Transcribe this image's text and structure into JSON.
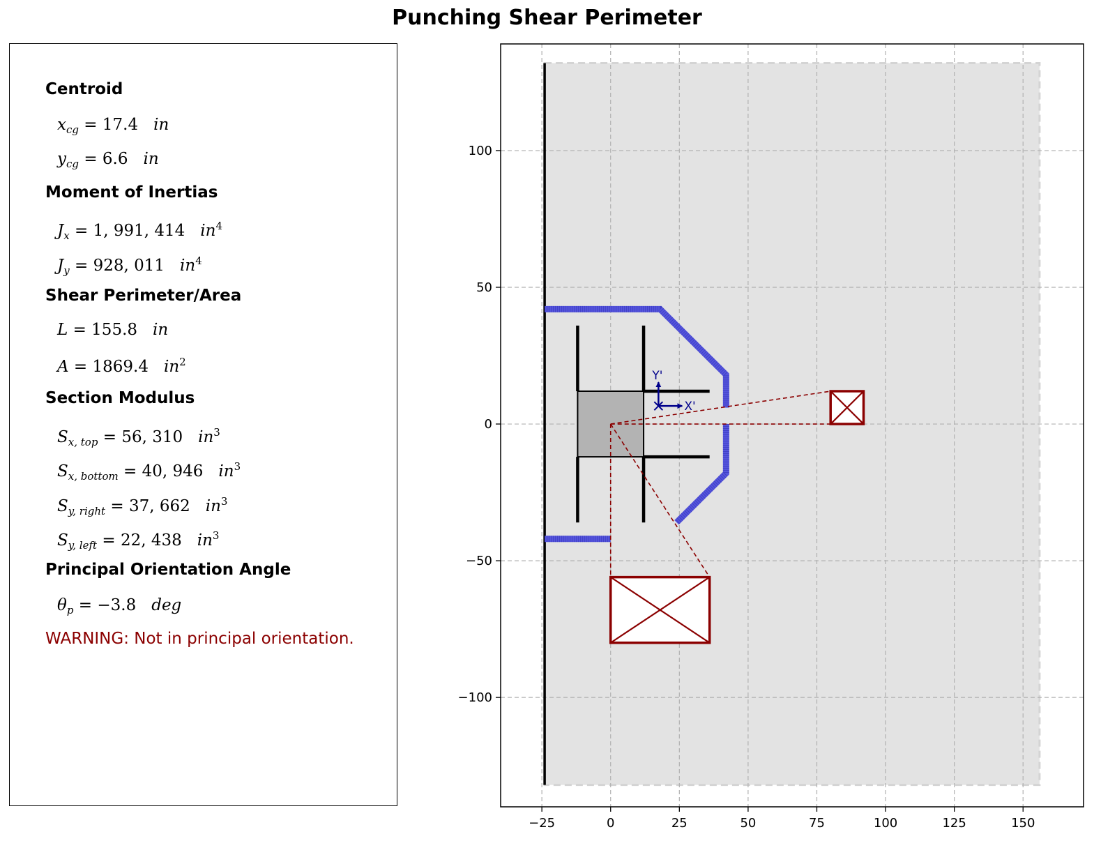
{
  "title": "Punching Shear Perimeter",
  "panel": {
    "centroid": {
      "heading": "Centroid",
      "xcg": {
        "sym": "x",
        "sub": "cg",
        "value": "17.4",
        "unit": "in",
        "pow": ""
      },
      "ycg": {
        "sym": "y",
        "sub": "cg",
        "value": "6.6",
        "unit": "in",
        "pow": ""
      }
    },
    "inertia": {
      "heading": "Moment of Inertias",
      "jx": {
        "sym": "J",
        "sub": "x",
        "value": "1, 991, 414",
        "unit": "in",
        "pow": "4"
      },
      "jy": {
        "sym": "J",
        "sub": "y",
        "value": "928, 011",
        "unit": "in",
        "pow": "4"
      }
    },
    "perimeter": {
      "heading": "Shear Perimeter/Area",
      "L": {
        "sym": "L",
        "sub": "",
        "value": "155.8",
        "unit": "in",
        "pow": ""
      },
      "A": {
        "sym": "A",
        "sub": "",
        "value": "1869.4",
        "unit": "in",
        "pow": "2"
      }
    },
    "modulus": {
      "heading": "Section Modulus",
      "sxtop": {
        "sym": "S",
        "sub": "x, top",
        "value": "56, 310",
        "unit": "in",
        "pow": "3"
      },
      "sxbot": {
        "sym": "S",
        "sub": "x, bottom",
        "value": "40, 946",
        "unit": "in",
        "pow": "3"
      },
      "syright": {
        "sym": "S",
        "sub": "y, right",
        "value": "37, 662",
        "unit": "in",
        "pow": "3"
      },
      "syleft": {
        "sym": "S",
        "sub": "y, left",
        "value": "22, 438",
        "unit": "in",
        "pow": "3"
      }
    },
    "principal": {
      "heading": "Principal Orientation Angle",
      "theta": {
        "sym": "θ",
        "sub": "p",
        "value": "−3.8",
        "unit": "deg",
        "pow": ""
      }
    },
    "warning": "WARNING: Not in principal orientation."
  },
  "chart_data": {
    "type": "diagram",
    "xlim": [
      -40,
      172
    ],
    "ylim": [
      -140,
      139
    ],
    "xticks": [
      -25,
      0,
      25,
      50,
      75,
      100,
      125,
      150
    ],
    "xtick_labels": [
      "−25",
      "0",
      "25",
      "50",
      "75",
      "100",
      "125",
      "150"
    ],
    "yticks": [
      -100,
      -50,
      0,
      50,
      100
    ],
    "ytick_labels": [
      "−100",
      "−50",
      "0",
      "50",
      "100"
    ],
    "grid": true,
    "slab": {
      "x": [
        -24,
        156
      ],
      "y": [
        -132,
        132
      ],
      "color": "#e3e3e3"
    },
    "slab_edge": {
      "x": -24,
      "y": [
        -132,
        132
      ]
    },
    "column": {
      "x": [
        -12,
        12
      ],
      "y": [
        -12,
        12
      ],
      "color": "#b3b3b3"
    },
    "rebar_lines": [
      {
        "x": [
          -12,
          -12
        ],
        "y": [
          12,
          36
        ]
      },
      {
        "x": [
          12,
          12
        ],
        "y": [
          12,
          36
        ]
      },
      {
        "x": [
          12,
          36
        ],
        "y": [
          12,
          12
        ]
      },
      {
        "x": [
          12,
          36
        ],
        "y": [
          -12,
          -12
        ]
      },
      {
        "x": [
          -12,
          -12
        ],
        "y": [
          -12,
          -36
        ]
      },
      {
        "x": [
          12,
          12
        ],
        "y": [
          -12,
          -36
        ]
      }
    ],
    "perimeter": {
      "color": "#5555dd",
      "segments": [
        [
          [
            -24,
            42
          ],
          [
            18,
            42
          ],
          [
            42,
            18
          ],
          [
            42,
            6
          ]
        ],
        [
          [
            42,
            0
          ],
          [
            42,
            -18
          ],
          [
            24,
            -36
          ]
        ],
        [
          [
            -24,
            -42
          ],
          [
            0,
            -42
          ]
        ]
      ]
    },
    "axes_marker": {
      "x": 17.4,
      "y": 6.6,
      "x_label": "X'",
      "y_label": "Y'",
      "color": "#00008b"
    },
    "small_box": {
      "x": [
        80,
        92
      ],
      "y": [
        0,
        12
      ],
      "color": "#8b0000"
    },
    "large_box": {
      "x": [
        0,
        36
      ],
      "y": [
        -80,
        -56
      ],
      "color": "#8b0000"
    },
    "leaders": [
      [
        [
          0,
          0
        ],
        [
          80,
          12
        ]
      ],
      [
        [
          0,
          0
        ],
        [
          80,
          0
        ]
      ],
      [
        [
          0,
          0
        ],
        [
          0,
          -56
        ]
      ],
      [
        [
          0,
          0
        ],
        [
          36,
          -56
        ]
      ]
    ]
  }
}
